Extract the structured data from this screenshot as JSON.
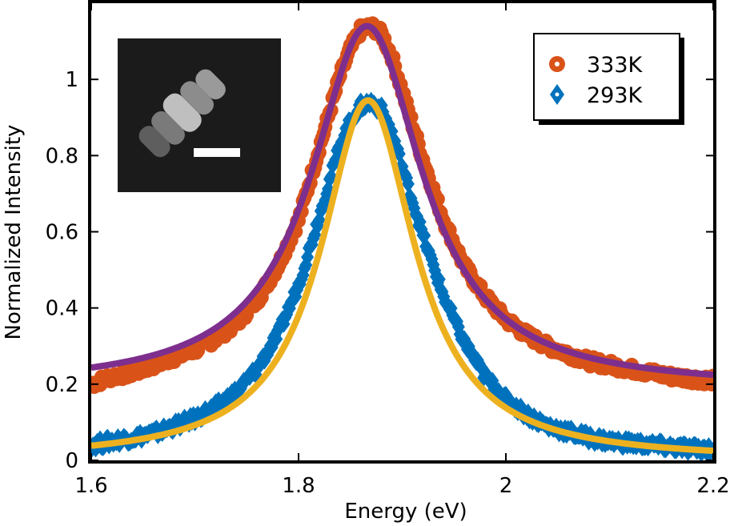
{
  "chart_data": {
    "type": "scatter",
    "title": "",
    "xlabel": "Energy (eV)",
    "ylabel": "Normalized Intensity",
    "xlim": [
      1.6,
      2.2
    ],
    "ylim": [
      0,
      1.2
    ],
    "xticks": [
      1.6,
      1.8,
      2.0,
      2.2
    ],
    "xtick_labels": [
      "1.6",
      "1.8",
      "2",
      "2.2"
    ],
    "yticks": [
      0,
      0.2,
      0.4,
      0.6,
      0.8,
      1.0
    ],
    "ytick_labels": [
      "0",
      "0.2",
      "0.4",
      "0.6",
      "0.8",
      "1"
    ],
    "grid": false,
    "legend_position": "top-right",
    "series": [
      {
        "name": "333K",
        "kind": "markers",
        "marker": "circle",
        "color": "#D95319",
        "x": [
          1.6,
          1.62,
          1.64,
          1.66,
          1.68,
          1.7,
          1.72,
          1.74,
          1.76,
          1.78,
          1.8,
          1.82,
          1.84,
          1.85,
          1.86,
          1.87,
          1.88,
          1.89,
          1.9,
          1.92,
          1.94,
          1.96,
          1.98,
          2.0,
          2.02,
          2.04,
          2.06,
          2.08,
          2.1,
          2.12,
          2.14,
          2.16,
          2.18,
          2.2
        ],
        "y": [
          0.2,
          0.22,
          0.23,
          0.25,
          0.27,
          0.29,
          0.32,
          0.36,
          0.42,
          0.51,
          0.63,
          0.82,
          1.01,
          1.08,
          1.13,
          1.14,
          1.12,
          1.06,
          0.97,
          0.79,
          0.63,
          0.51,
          0.43,
          0.37,
          0.33,
          0.3,
          0.28,
          0.26,
          0.25,
          0.24,
          0.23,
          0.22,
          0.215,
          0.21
        ]
      },
      {
        "name": "293K",
        "kind": "markers",
        "marker": "diamond",
        "color": "#0072BD",
        "x": [
          1.6,
          1.62,
          1.64,
          1.66,
          1.68,
          1.7,
          1.72,
          1.74,
          1.76,
          1.78,
          1.8,
          1.82,
          1.84,
          1.85,
          1.86,
          1.87,
          1.88,
          1.89,
          1.9,
          1.92,
          1.94,
          1.96,
          1.98,
          2.0,
          2.02,
          2.04,
          2.06,
          2.08,
          2.1,
          2.12,
          2.14,
          2.16,
          2.18,
          2.2
        ],
        "y": [
          0.04,
          0.05,
          0.06,
          0.07,
          0.09,
          0.11,
          0.14,
          0.18,
          0.24,
          0.33,
          0.46,
          0.64,
          0.83,
          0.89,
          0.93,
          0.94,
          0.92,
          0.86,
          0.77,
          0.59,
          0.43,
          0.31,
          0.22,
          0.16,
          0.12,
          0.09,
          0.075,
          0.06,
          0.05,
          0.045,
          0.04,
          0.035,
          0.03,
          0.03
        ]
      },
      {
        "name": "",
        "kind": "fit-line",
        "color": "#7E2F8E",
        "x0": 1.866,
        "gamma": 0.13,
        "amplitude": 0.95,
        "offset": 0.19
      },
      {
        "name": "",
        "kind": "fit-line",
        "color": "#EDB120",
        "x0": 1.867,
        "gamma": 0.11,
        "amplitude": 0.945,
        "offset": 0.0
      }
    ]
  },
  "inset": {
    "description_icon": "sem-nanorod-chain-image",
    "background_color": "#1a1a1a"
  }
}
